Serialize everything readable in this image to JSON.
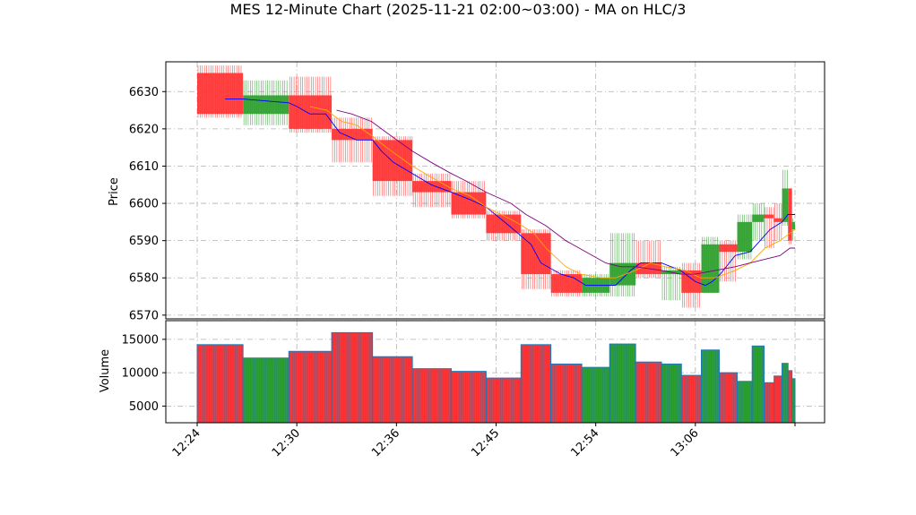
{
  "chart_data": {
    "type": "candlestick-with-volume",
    "title": "MES 12-Minute Chart (2025-11-21 02:00~03:00) - MA on HLC/3",
    "price_panel": {
      "ylabel": "Price",
      "ylim": [
        6569,
        6638
      ],
      "yticks": [
        6570,
        6580,
        6590,
        6600,
        6610,
        6620,
        6630
      ]
    },
    "volume_panel": {
      "ylabel": "Volume",
      "ylim": [
        2500,
        17800
      ],
      "yticks": [
        5000,
        10000,
        15000
      ]
    },
    "xlim": [
      0,
      63
    ],
    "xticks": [
      {
        "x": 3,
        "label": "12:24"
      },
      {
        "x": 13,
        "label": "12:30"
      },
      {
        "x": 23,
        "label": "12:36"
      },
      {
        "x": 33,
        "label": "12:45"
      },
      {
        "x": 43,
        "label": "12:54"
      },
      {
        "x": 53,
        "label": "13:06"
      },
      {
        "x": 63,
        "label": ""
      }
    ],
    "grid": true,
    "colors": {
      "up": "#2ca02c",
      "down": "#ff3333",
      "ma_fast": "#0000ff",
      "ma_mid": "#ffa500",
      "ma_slow": "#800080",
      "volume_edge": "#1f77b4"
    },
    "bars": [
      {
        "x0": 3.0,
        "x1": 7.6,
        "open": 6635,
        "high": 6637,
        "low": 6623,
        "close": 6624,
        "volume": 14200
      },
      {
        "x0": 7.6,
        "x1": 12.2,
        "open": 6624,
        "high": 6633,
        "low": 6621,
        "close": 6629,
        "volume": 12200
      },
      {
        "x0": 12.2,
        "x1": 16.5,
        "open": 6629,
        "high": 6634,
        "low": 6619,
        "close": 6620,
        "volume": 13200
      },
      {
        "x0": 16.5,
        "x1": 20.6,
        "open": 6620,
        "high": 6623,
        "low": 6611,
        "close": 6617,
        "volume": 16000
      },
      {
        "x0": 20.6,
        "x1": 24.6,
        "open": 6617,
        "high": 6618,
        "low": 6602,
        "close": 6606,
        "volume": 12400
      },
      {
        "x0": 24.6,
        "x1": 28.5,
        "open": 6606,
        "high": 6608,
        "low": 6599,
        "close": 6603,
        "volume": 10600
      },
      {
        "x0": 28.5,
        "x1": 32.0,
        "open": 6603,
        "high": 6606,
        "low": 6596,
        "close": 6597,
        "volume": 10200
      },
      {
        "x0": 32.0,
        "x1": 35.5,
        "open": 6597,
        "high": 6598,
        "low": 6590,
        "close": 6592,
        "volume": 9200
      },
      {
        "x0": 35.5,
        "x1": 38.5,
        "open": 6592,
        "high": 6593,
        "low": 6577,
        "close": 6581,
        "volume": 14200
      },
      {
        "x0": 38.5,
        "x1": 41.6,
        "open": 6581,
        "high": 6582,
        "low": 6575,
        "close": 6576,
        "volume": 11300
      },
      {
        "x0": 41.6,
        "x1": 44.4,
        "open": 6576,
        "high": 6581,
        "low": 6575,
        "close": 6580,
        "volume": 10800
      },
      {
        "x0": 44.4,
        "x1": 47.0,
        "open": 6578,
        "high": 6592,
        "low": 6575,
        "close": 6584,
        "volume": 14300
      },
      {
        "x0": 47.0,
        "x1": 49.6,
        "open": 6584,
        "high": 6590,
        "low": 6580,
        "close": 6581,
        "volume": 11600
      },
      {
        "x0": 49.6,
        "x1": 51.6,
        "open": 6581,
        "high": 6583,
        "low": 6574,
        "close": 6582,
        "volume": 11300
      },
      {
        "x0": 51.6,
        "x1": 53.6,
        "open": 6582,
        "high": 6584,
        "low": 6572,
        "close": 6576,
        "volume": 9600
      },
      {
        "x0": 53.6,
        "x1": 55.4,
        "open": 6576,
        "high": 6591,
        "low": 6576,
        "close": 6589,
        "volume": 13400
      },
      {
        "x0": 55.4,
        "x1": 57.2,
        "open": 6589,
        "high": 6590,
        "low": 6579,
        "close": 6587,
        "volume": 10000
      },
      {
        "x0": 57.2,
        "x1": 58.7,
        "open": 6587,
        "high": 6597,
        "low": 6585,
        "close": 6595,
        "volume": 8700
      },
      {
        "x0": 58.7,
        "x1": 59.9,
        "open": 6595,
        "high": 6600,
        "low": 6590,
        "close": 6597,
        "volume": 14000
      },
      {
        "x0": 59.9,
        "x1": 60.9,
        "open": 6597,
        "high": 6599,
        "low": 6588,
        "close": 6596,
        "volume": 8500
      },
      {
        "x0": 60.9,
        "x1": 61.7,
        "open": 6596,
        "high": 6600,
        "low": 6590,
        "close": 6595,
        "volume": 9500
      },
      {
        "x0": 61.7,
        "x1": 62.3,
        "open": 6595,
        "high": 6609,
        "low": 6594,
        "close": 6604,
        "volume": 11400
      },
      {
        "x0": 62.3,
        "x1": 62.7,
        "open": 6604,
        "high": 6604,
        "low": 6589,
        "close": 6590,
        "volume": 10300
      },
      {
        "x0": 62.7,
        "x1": 63.0,
        "open": 6593,
        "high": 6596,
        "low": 6590,
        "close": 6595,
        "volume": 9100
      }
    ],
    "ma_series": [
      {
        "color": "#0000ff",
        "points": [
          [
            5.8,
            6628
          ],
          [
            7.6,
            6628
          ],
          [
            12.2,
            6627
          ],
          [
            13.0,
            6626
          ],
          [
            14.3,
            6624
          ],
          [
            15.9,
            6624
          ],
          [
            17.3,
            6619
          ],
          [
            19.0,
            6617
          ],
          [
            20.6,
            6617
          ],
          [
            21.5,
            6614
          ],
          [
            22.7,
            6611
          ],
          [
            24.6,
            6608
          ],
          [
            26.5,
            6605
          ],
          [
            28.5,
            6603
          ],
          [
            30.4,
            6601
          ],
          [
            32.0,
            6599
          ],
          [
            34.3,
            6594
          ],
          [
            36.5,
            6589
          ],
          [
            37.5,
            6584
          ],
          [
            39.5,
            6581
          ],
          [
            40.8,
            6580
          ],
          [
            42.0,
            6578
          ],
          [
            43.0,
            6578
          ],
          [
            45.0,
            6578
          ],
          [
            46.5,
            6582
          ],
          [
            47.5,
            6584
          ],
          [
            49.6,
            6584
          ],
          [
            51.5,
            6582
          ],
          [
            53.0,
            6579
          ],
          [
            54.0,
            6578
          ],
          [
            54.7,
            6579
          ],
          [
            55.5,
            6581
          ],
          [
            57.0,
            6586
          ],
          [
            58.5,
            6587
          ],
          [
            59.5,
            6590
          ],
          [
            60.5,
            6593
          ],
          [
            61.7,
            6595
          ],
          [
            62.3,
            6597
          ],
          [
            63.0,
            6597
          ]
        ]
      },
      {
        "color": "#ffa500",
        "points": [
          [
            14.3,
            6626
          ],
          [
            16.0,
            6625
          ],
          [
            17.5,
            6622
          ],
          [
            19.0,
            6621
          ],
          [
            20.6,
            6618
          ],
          [
            22.0,
            6615
          ],
          [
            24.6,
            6610
          ],
          [
            26.5,
            6607
          ],
          [
            28.5,
            6604
          ],
          [
            30.4,
            6602
          ],
          [
            32.0,
            6599
          ],
          [
            33.5,
            6597
          ],
          [
            35.0,
            6595
          ],
          [
            36.8,
            6592
          ],
          [
            38.0,
            6588
          ],
          [
            40.0,
            6583
          ],
          [
            41.5,
            6581
          ],
          [
            43.5,
            6580
          ],
          [
            45.0,
            6580
          ],
          [
            47.0,
            6582
          ],
          [
            48.5,
            6584
          ],
          [
            50.0,
            6583
          ],
          [
            52.0,
            6582
          ],
          [
            53.5,
            6580
          ],
          [
            55.0,
            6580
          ],
          [
            57.0,
            6582
          ],
          [
            58.5,
            6584
          ],
          [
            60.0,
            6588
          ],
          [
            61.5,
            6590
          ],
          [
            62.5,
            6592
          ],
          [
            63.0,
            6593
          ]
        ]
      },
      {
        "color": "#800080",
        "points": [
          [
            17.0,
            6625
          ],
          [
            18.5,
            6624
          ],
          [
            20.5,
            6622
          ],
          [
            22.0,
            6619
          ],
          [
            24.6,
            6614
          ],
          [
            26.5,
            6611
          ],
          [
            28.5,
            6608
          ],
          [
            30.0,
            6606
          ],
          [
            32.0,
            6603
          ],
          [
            34.5,
            6600
          ],
          [
            36.0,
            6597
          ],
          [
            38.0,
            6594
          ],
          [
            40.0,
            6590
          ],
          [
            42.0,
            6587
          ],
          [
            44.0,
            6584
          ],
          [
            45.5,
            6583
          ],
          [
            47.0,
            6583
          ],
          [
            49.6,
            6582
          ],
          [
            51.5,
            6581
          ],
          [
            53.0,
            6581
          ],
          [
            55.0,
            6582
          ],
          [
            57.0,
            6583
          ],
          [
            58.5,
            6584
          ],
          [
            60.0,
            6585
          ],
          [
            61.5,
            6586
          ],
          [
            62.5,
            6588
          ],
          [
            63.0,
            6588
          ]
        ]
      }
    ]
  }
}
